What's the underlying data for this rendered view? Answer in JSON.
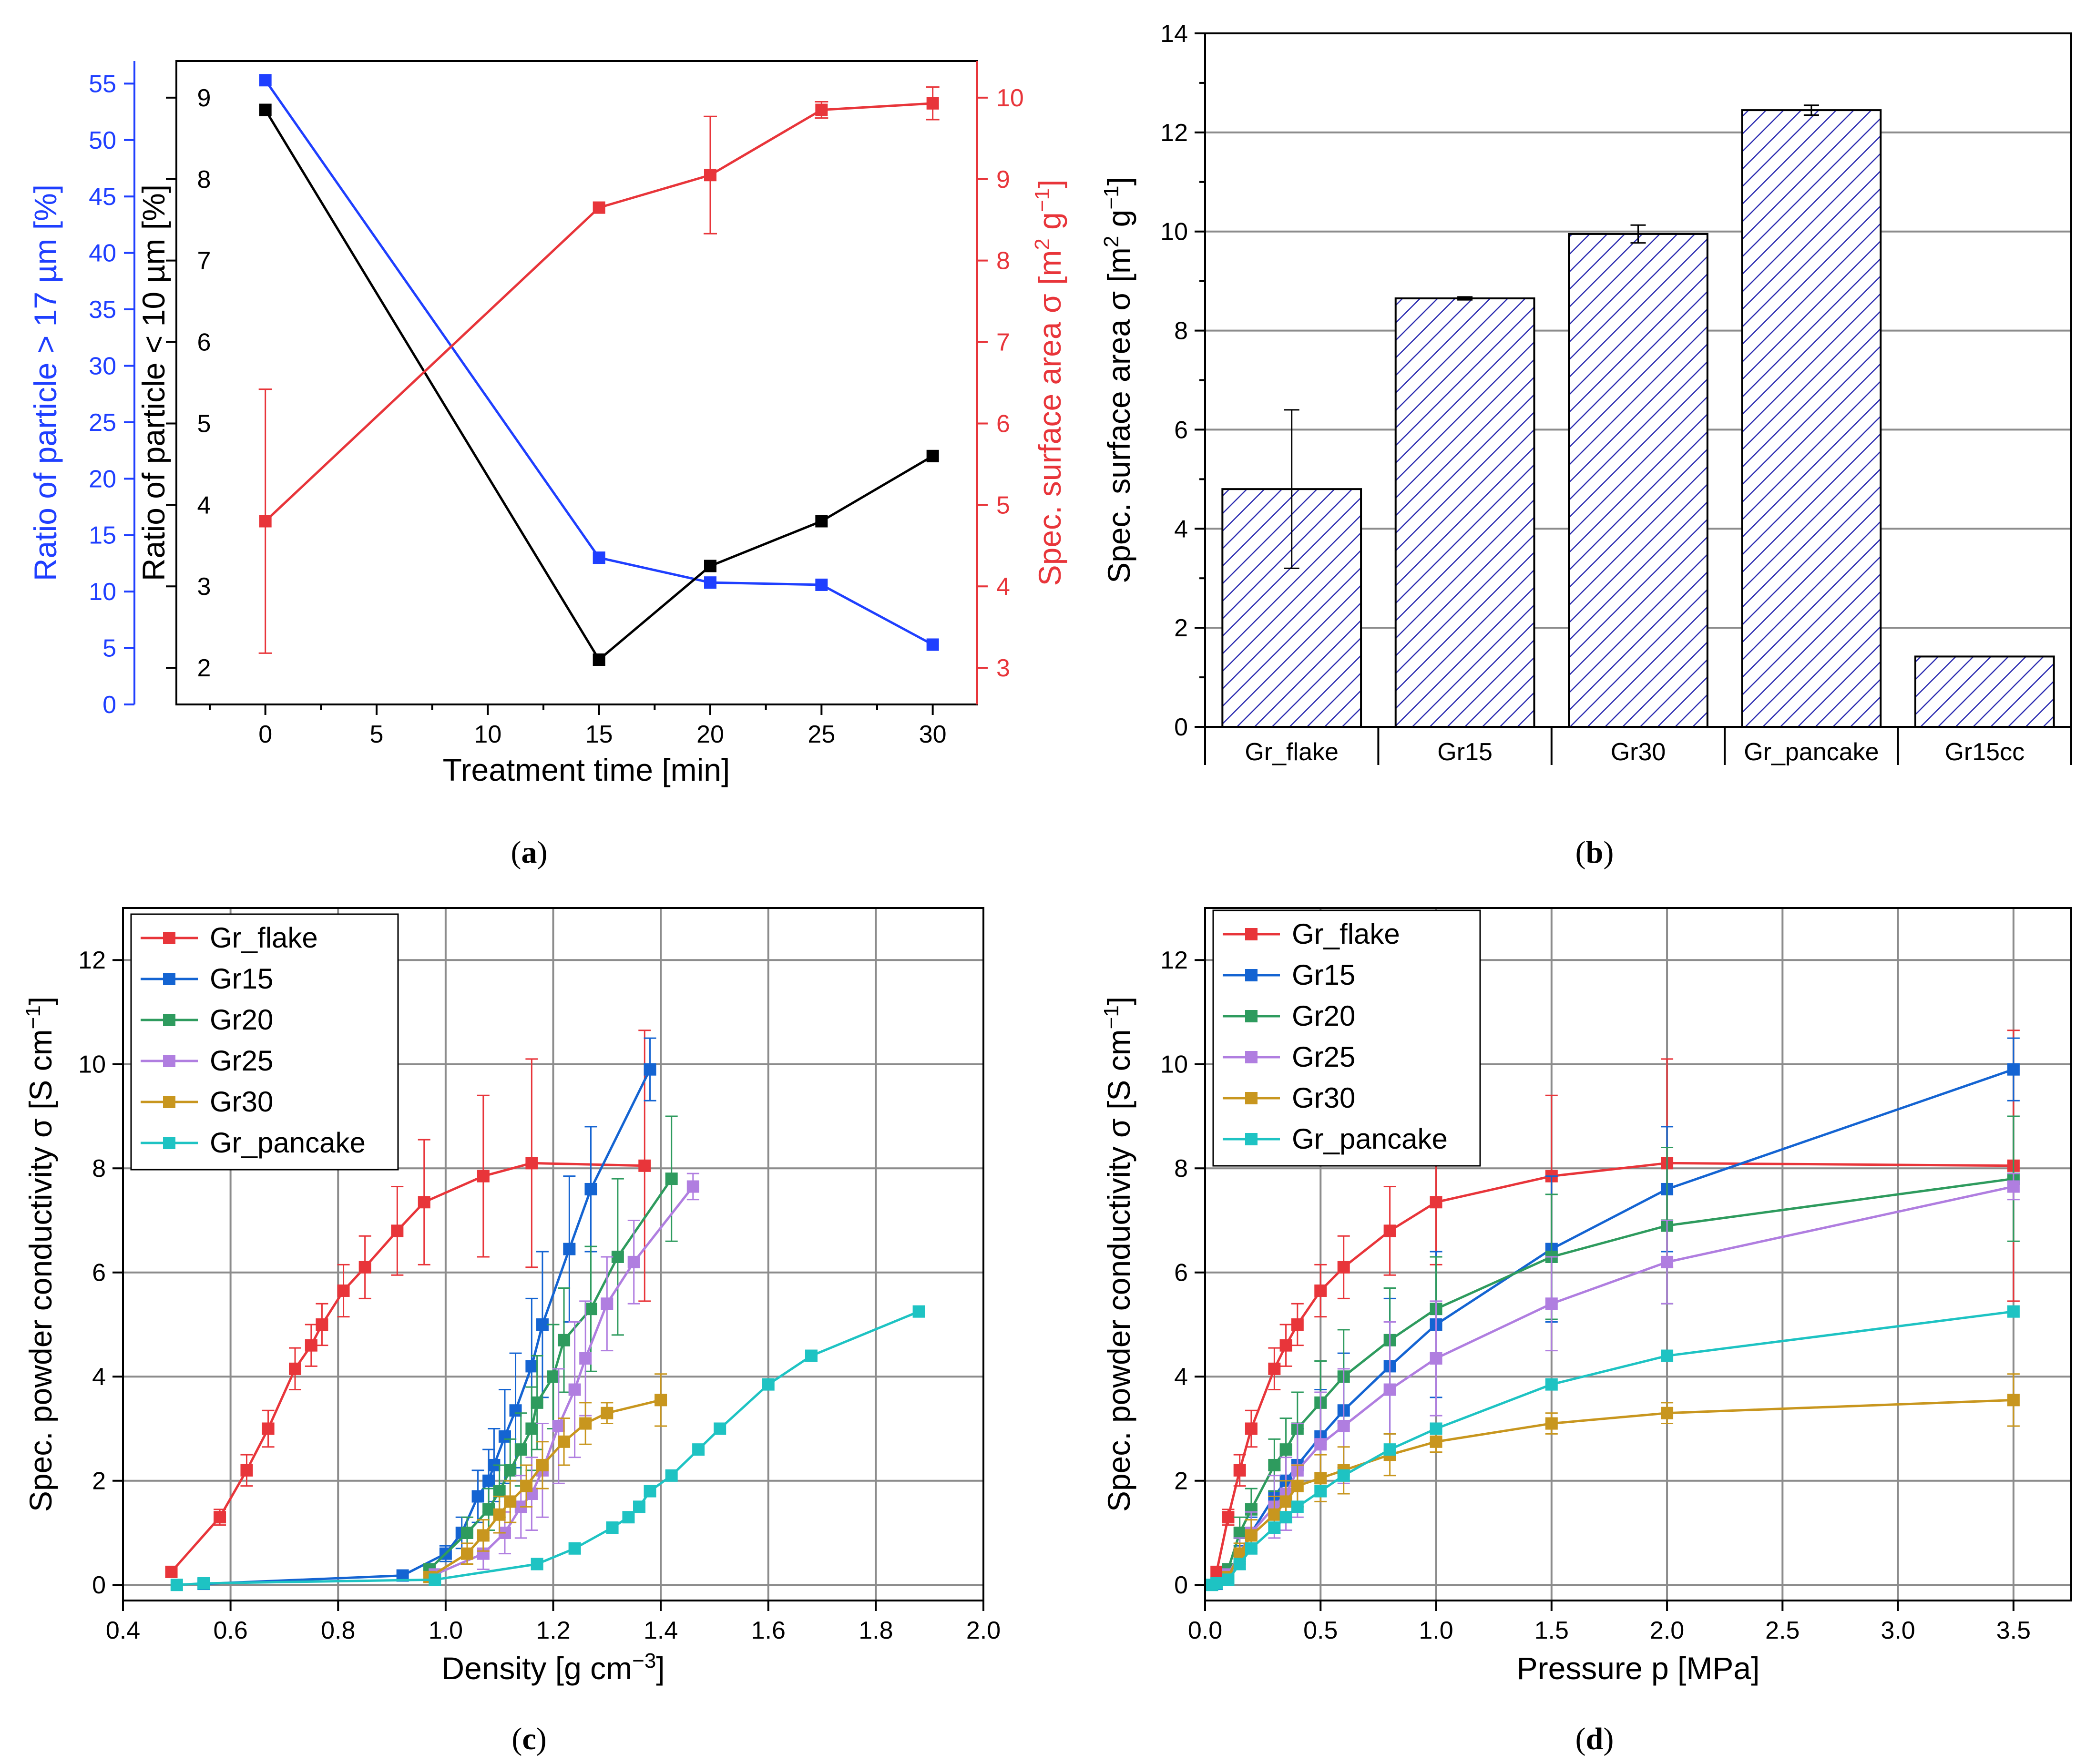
{
  "panel_labels": [
    "a",
    "b",
    "c",
    "d"
  ],
  "colors": {
    "blue": "#1f3fff",
    "black": "#000000",
    "red": "#e8353a",
    "Gr_flake": "#e8353a",
    "Gr15": "#1464d2",
    "Gr20": "#2e9b5e",
    "Gr25": "#b07ee0",
    "Gr30": "#c8961e",
    "Gr_pancake": "#1ec3c3",
    "hatch": "#2a2ab0"
  },
  "chart_data": [
    {
      "id": "a",
      "type": "line",
      "xlabel": "Treatment time [min]",
      "x_ticks": [
        "0",
        "5",
        "10",
        "15",
        "20",
        "25",
        "30"
      ],
      "xlim": [
        -4,
        32
      ],
      "axes": [
        {
          "side": "left-outer",
          "label": "Ratio of particle > 17 µm [%]",
          "ylim": [
            0,
            57
          ],
          "ticks": [
            "0",
            "5",
            "10",
            "15",
            "20",
            "25",
            "30",
            "35",
            "40",
            "45",
            "50",
            "55"
          ]
        },
        {
          "side": "left-inner",
          "label": "Ratio of particle < 10 µm [%]",
          "ylim": [
            1.55,
            9.45
          ],
          "ticks": [
            "2",
            "3",
            "4",
            "5",
            "6",
            "7",
            "8",
            "9"
          ]
        },
        {
          "side": "right",
          "label": "Spec. surface area σ [m² g⁻¹]",
          "label_base": "Spec. surface area σ [m",
          "label_sup1": "2",
          "label_mid": " g",
          "label_sup2": "−1",
          "label_end": "]",
          "ylim": [
            2.55,
            10.45
          ],
          "ticks": [
            "3",
            "4",
            "5",
            "6",
            "7",
            "8",
            "9",
            "10"
          ]
        }
      ],
      "series": [
        {
          "axis": 0,
          "x": [
            0,
            15,
            20,
            25,
            30
          ],
          "y": [
            55.3,
            13.0,
            10.8,
            10.6,
            5.3
          ]
        },
        {
          "axis": 1,
          "x": [
            0,
            15,
            20,
            25,
            30
          ],
          "y": [
            8.85,
            2.1,
            3.25,
            3.8,
            4.6
          ]
        },
        {
          "axis": 2,
          "x": [
            0,
            15,
            20,
            25,
            30
          ],
          "y": [
            4.8,
            8.65,
            9.05,
            9.85,
            9.93
          ],
          "err": [
            1.62,
            0,
            0.72,
            0.1,
            0.2
          ]
        }
      ]
    },
    {
      "id": "b",
      "type": "bar",
      "ylabel_base": "Spec. surface area σ [m",
      "ylabel_sup1": "2",
      "ylabel_mid": " g",
      "ylabel_sup2": "−1",
      "ylabel_end": "]",
      "categories": [
        "Gr_flake",
        "Gr15",
        "Gr30",
        "Gr_pancake",
        "Gr15cc"
      ],
      "values": [
        4.8,
        8.65,
        9.95,
        12.45,
        1.42
      ],
      "errors": [
        1.6,
        0.03,
        0.18,
        0.1,
        0
      ],
      "ylim": [
        0,
        14
      ],
      "y_ticks": [
        "0",
        "2",
        "4",
        "6",
        "8",
        "10",
        "12",
        "14"
      ]
    },
    {
      "id": "c",
      "type": "line",
      "xlabel_base": "Density [g cm",
      "xlabel_sup": "−3",
      "xlabel_end": "]",
      "ylabel_base": "Spec. powder conductivity σ [S cm",
      "ylabel_sup": "−1",
      "ylabel_end": "]",
      "xlim": [
        0.4,
        2.0
      ],
      "ylim": [
        -0.3,
        13
      ],
      "x_ticks": [
        "0.4",
        "0.6",
        "0.8",
        "1.0",
        "1.2",
        "1.4",
        "1.6",
        "1.8",
        "2.0"
      ],
      "y_ticks": [
        "0",
        "2",
        "4",
        "6",
        "8",
        "10",
        "12"
      ],
      "legend": [
        "Gr_flake",
        "Gr15",
        "Gr20",
        "Gr25",
        "Gr30",
        "Gr_pancake"
      ],
      "series": [
        {
          "name": "Gr_flake",
          "x": [
            0.49,
            0.58,
            0.63,
            0.67,
            0.72,
            0.75,
            0.77,
            0.81,
            0.85,
            0.91,
            0.96,
            1.07,
            1.16,
            1.37
          ],
          "y": [
            0.25,
            1.3,
            2.2,
            3.0,
            4.15,
            4.6,
            5.0,
            5.65,
            6.1,
            6.8,
            7.35,
            7.85,
            8.1,
            8.05
          ],
          "err": [
            0,
            0.15,
            0.3,
            0.35,
            0.4,
            0.4,
            0.4,
            0.5,
            0.6,
            0.85,
            1.2,
            1.55,
            2.0,
            2.6
          ]
        },
        {
          "name": "Gr15",
          "x": [
            0.55,
            0.92,
            1.0,
            1.03,
            1.06,
            1.08,
            1.09,
            1.11,
            1.13,
            1.16,
            1.18,
            1.23,
            1.27,
            1.38
          ],
          "y": [
            0.02,
            0.18,
            0.6,
            1.0,
            1.7,
            2.0,
            2.3,
            2.85,
            3.35,
            4.2,
            5.0,
            6.45,
            7.6,
            9.9
          ],
          "err": [
            0,
            0,
            0.15,
            0.3,
            0.5,
            0.6,
            0.7,
            0.9,
            1.1,
            1.3,
            1.4,
            1.4,
            1.2,
            0.6
          ]
        },
        {
          "name": "Gr20",
          "x": [
            0.97,
            1.04,
            1.08,
            1.1,
            1.12,
            1.14,
            1.16,
            1.17,
            1.2,
            1.22,
            1.27,
            1.32,
            1.42
          ],
          "y": [
            0.3,
            1.0,
            1.45,
            1.8,
            2.2,
            2.6,
            3.0,
            3.5,
            4.0,
            4.7,
            5.3,
            6.3,
            7.8
          ],
          "err": [
            0,
            0.3,
            0.4,
            0.5,
            0.6,
            0.7,
            0.8,
            0.9,
            1.0,
            1.0,
            1.2,
            1.5,
            1.2
          ]
        },
        {
          "name": "Gr25",
          "x": [
            0.98,
            1.07,
            1.11,
            1.14,
            1.16,
            1.18,
            1.21,
            1.24,
            1.26,
            1.3,
            1.35,
            1.46
          ],
          "y": [
            0.2,
            0.6,
            1.0,
            1.5,
            1.75,
            2.2,
            3.05,
            3.75,
            4.35,
            5.4,
            6.2,
            7.65
          ],
          "err": [
            0,
            0.3,
            0.4,
            0.6,
            0.7,
            0.9,
            1.1,
            1.3,
            1.1,
            0.9,
            0.8,
            0.25
          ]
        },
        {
          "name": "Gr30",
          "x": [
            0.97,
            1.04,
            1.07,
            1.1,
            1.12,
            1.15,
            1.18,
            1.22,
            1.26,
            1.3,
            1.4
          ],
          "y": [
            0.15,
            0.6,
            0.95,
            1.35,
            1.6,
            1.9,
            2.3,
            2.75,
            3.1,
            3.3,
            3.55
          ],
          "err": [
            0,
            0.2,
            0.3,
            0.35,
            0.4,
            0.4,
            0.45,
            0.45,
            0.4,
            0.2,
            0.5
          ]
        },
        {
          "name": "Gr_pancake",
          "x": [
            0.5,
            0.55,
            0.98,
            1.17,
            1.24,
            1.31,
            1.34,
            1.36,
            1.38,
            1.42,
            1.47,
            1.51,
            1.6,
            1.68,
            1.88
          ],
          "y": [
            0.0,
            0.03,
            0.1,
            0.4,
            0.7,
            1.1,
            1.3,
            1.5,
            1.8,
            2.1,
            2.6,
            3.0,
            3.85,
            4.4,
            5.25
          ],
          "err": [
            0,
            0,
            0,
            0,
            0,
            0,
            0,
            0,
            0,
            0,
            0,
            0,
            0,
            0,
            0
          ]
        }
      ]
    },
    {
      "id": "d",
      "type": "line",
      "xlabel": "Pressure p [MPa]",
      "ylabel_base": "Spec. powder conductivity σ [S cm",
      "ylabel_sup": "−1",
      "ylabel_end": "]",
      "xlim": [
        0,
        3.75
      ],
      "ylim": [
        -0.3,
        13
      ],
      "x_ticks": [
        "0.0",
        "0.5",
        "1.0",
        "1.5",
        "2.0",
        "2.5",
        "3.0",
        "3.5"
      ],
      "y_ticks": [
        "0",
        "2",
        "4",
        "6",
        "8",
        "10",
        "12"
      ],
      "legend": [
        "Gr_flake",
        "Gr15",
        "Gr20",
        "Gr25",
        "Gr30",
        "Gr_pancake"
      ],
      "series": [
        {
          "name": "Gr_flake",
          "x": [
            0.05,
            0.1,
            0.15,
            0.2,
            0.3,
            0.35,
            0.4,
            0.5,
            0.6,
            0.8,
            1.0,
            1.5,
            2.0,
            3.5
          ],
          "y": [
            0.25,
            1.3,
            2.2,
            3.0,
            4.15,
            4.6,
            5.0,
            5.65,
            6.1,
            6.8,
            7.35,
            7.85,
            8.1,
            8.05
          ],
          "err": [
            0,
            0.15,
            0.3,
            0.35,
            0.4,
            0.4,
            0.4,
            0.5,
            0.6,
            0.85,
            1.2,
            1.55,
            2.0,
            2.6
          ]
        },
        {
          "name": "Gr15",
          "x": [
            0.05,
            0.1,
            0.15,
            0.2,
            0.3,
            0.35,
            0.4,
            0.5,
            0.6,
            0.8,
            1.0,
            1.5,
            2.0,
            3.5
          ],
          "y": [
            0.02,
            0.18,
            0.6,
            1.0,
            1.7,
            2.0,
            2.3,
            2.85,
            3.35,
            4.2,
            5.0,
            6.45,
            7.6,
            9.9
          ],
          "err": [
            0,
            0,
            0.15,
            0.3,
            0.5,
            0.6,
            0.7,
            0.9,
            1.1,
            1.3,
            1.4,
            1.4,
            1.2,
            0.6
          ]
        },
        {
          "name": "Gr20",
          "x": [
            0.1,
            0.15,
            0.2,
            0.3,
            0.35,
            0.4,
            0.5,
            0.6,
            0.8,
            1.0,
            1.5,
            2.0,
            3.5
          ],
          "y": [
            0.3,
            1.0,
            1.45,
            2.3,
            2.6,
            3.0,
            3.5,
            4.0,
            4.7,
            5.3,
            6.3,
            6.9,
            7.8
          ],
          "err": [
            0,
            0.3,
            0.4,
            0.5,
            0.6,
            0.7,
            0.8,
            0.9,
            1.0,
            1.0,
            1.2,
            1.5,
            1.2
          ]
        },
        {
          "name": "Gr25",
          "x": [
            0.1,
            0.15,
            0.2,
            0.3,
            0.35,
            0.4,
            0.5,
            0.6,
            0.8,
            1.0,
            1.5,
            2.0,
            3.5
          ],
          "y": [
            0.2,
            0.6,
            1.0,
            1.5,
            1.75,
            2.2,
            2.7,
            3.05,
            3.75,
            4.35,
            5.4,
            6.2,
            7.65
          ],
          "err": [
            0,
            0.3,
            0.4,
            0.6,
            0.7,
            0.9,
            1.0,
            1.1,
            1.3,
            1.1,
            0.9,
            0.8,
            0.25
          ]
        },
        {
          "name": "Gr30",
          "x": [
            0.1,
            0.15,
            0.2,
            0.3,
            0.35,
            0.4,
            0.5,
            0.6,
            0.8,
            1.0,
            1.5,
            2.0,
            3.5
          ],
          "y": [
            0.15,
            0.6,
            0.95,
            1.35,
            1.6,
            1.9,
            2.05,
            2.2,
            2.5,
            2.75,
            3.1,
            3.3,
            3.55
          ],
          "err": [
            0,
            0.2,
            0.3,
            0.35,
            0.4,
            0.4,
            0.45,
            0.45,
            0.4,
            0.2,
            0.2,
            0.2,
            0.5
          ]
        },
        {
          "name": "Gr_pancake",
          "x": [
            0.03,
            0.05,
            0.1,
            0.15,
            0.2,
            0.3,
            0.35,
            0.4,
            0.5,
            0.6,
            0.8,
            1.0,
            1.5,
            2.0,
            3.5
          ],
          "y": [
            0.0,
            0.03,
            0.1,
            0.4,
            0.7,
            1.1,
            1.3,
            1.5,
            1.8,
            2.1,
            2.6,
            3.0,
            3.85,
            4.4,
            5.25
          ],
          "err": [
            0,
            0,
            0,
            0,
            0,
            0,
            0,
            0,
            0,
            0,
            0,
            0,
            0,
            0,
            0
          ]
        }
      ]
    }
  ]
}
